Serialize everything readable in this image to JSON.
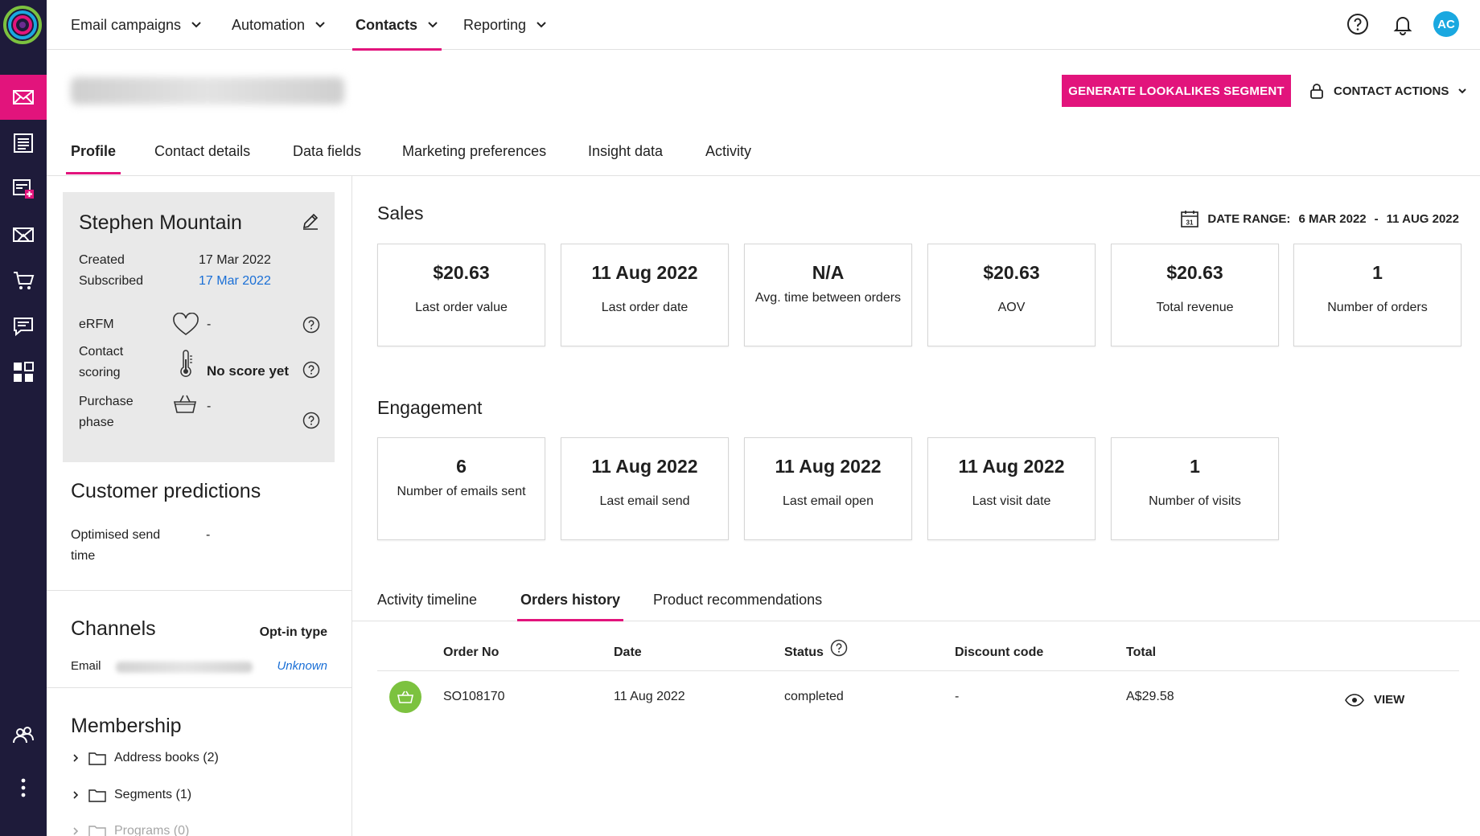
{
  "nav": {
    "items": [
      {
        "label": "Email campaigns",
        "active": false
      },
      {
        "label": "Automation",
        "active": false
      },
      {
        "label": "Contacts",
        "active": true
      },
      {
        "label": "Reporting",
        "active": false
      }
    ],
    "avatar_initials": "AC"
  },
  "header": {
    "generate_label": "GENERATE LOOKALIKES SEGMENT",
    "contact_actions_label": "CONTACT ACTIONS"
  },
  "profile_tabs": [
    {
      "label": "Profile",
      "active": true
    },
    {
      "label": "Contact details",
      "active": false
    },
    {
      "label": "Data fields",
      "active": false
    },
    {
      "label": "Marketing preferences",
      "active": false
    },
    {
      "label": "Insight data",
      "active": false
    },
    {
      "label": "Activity",
      "active": false
    }
  ],
  "profile": {
    "name": "Stephen Mountain",
    "created_label": "Created",
    "created_value": "17 Mar 2022",
    "subscribed_label": "Subscribed",
    "subscribed_value": "17 Mar 2022",
    "erfm_label": "eRFM",
    "erfm_value": "-",
    "scoring_label_1": "Contact",
    "scoring_label_2": "scoring",
    "scoring_value": "No score yet",
    "phase_label_1": "Purchase",
    "phase_label_2": "phase",
    "phase_value": "-"
  },
  "predictions": {
    "title": "Customer predictions",
    "send_time_label_1": "Optimised send",
    "send_time_label_2": "time",
    "send_time_value": "-"
  },
  "channels": {
    "title": "Channels",
    "optin_header": "Opt-in type",
    "email_label": "Email",
    "email_optin": "Unknown"
  },
  "membership": {
    "title": "Membership",
    "items": [
      "Address books (2)",
      "Segments (1)",
      "Programs (0)"
    ]
  },
  "sales": {
    "title": "Sales",
    "date_range_label": "DATE RANGE:",
    "date_from": "6 MAR 2022",
    "date_sep": "-",
    "date_to": "11 AUG 2022",
    "calendar_day": "31",
    "cards": [
      {
        "value": "$20.63",
        "label": "Last order value"
      },
      {
        "value": "11 Aug 2022",
        "label": "Last order date"
      },
      {
        "value": "N/A",
        "label": "Avg. time between orders"
      },
      {
        "value": "$20.63",
        "label": "AOV"
      },
      {
        "value": "$20.63",
        "label": "Total revenue"
      },
      {
        "value": "1",
        "label": "Number of orders"
      }
    ]
  },
  "engagement": {
    "title": "Engagement",
    "cards": [
      {
        "value": "6",
        "label": "Number of emails sent"
      },
      {
        "value": "11 Aug 2022",
        "label": "Last email send"
      },
      {
        "value": "11 Aug 2022",
        "label": "Last email open"
      },
      {
        "value": "11 Aug 2022",
        "label": "Last visit date"
      },
      {
        "value": "1",
        "label": "Number of visits"
      }
    ]
  },
  "lower_tabs": [
    {
      "label": "Activity timeline",
      "active": false
    },
    {
      "label": "Orders history",
      "active": true
    },
    {
      "label": "Product recommendations",
      "active": false
    }
  ],
  "orders": {
    "columns": [
      "Order No",
      "Date",
      "Status",
      "Discount code",
      "Total"
    ],
    "rows": [
      {
        "order_no": "SO108170",
        "date": "11 Aug 2022",
        "status": "completed",
        "discount": "-",
        "total": "A$29.58",
        "action": "VIEW"
      }
    ]
  },
  "colors": {
    "accent": "#e2147c",
    "rail": "#1e1b3a",
    "link": "#1a6fd6",
    "badge": "#7cc23f",
    "avatar": "#1aa8e0"
  },
  "icons": [
    "logo-icon",
    "email-icon",
    "pages-icon",
    "forms-icon",
    "sms-icon",
    "ecommerce-icon",
    "chat-icon",
    "apps-icon",
    "contacts-icon",
    "more-icon",
    "help-icon",
    "bell-icon",
    "lock-icon",
    "edit-icon",
    "heart-icon",
    "thermometer-icon",
    "basket-icon",
    "calendar-icon",
    "folder-icon",
    "eye-icon"
  ]
}
